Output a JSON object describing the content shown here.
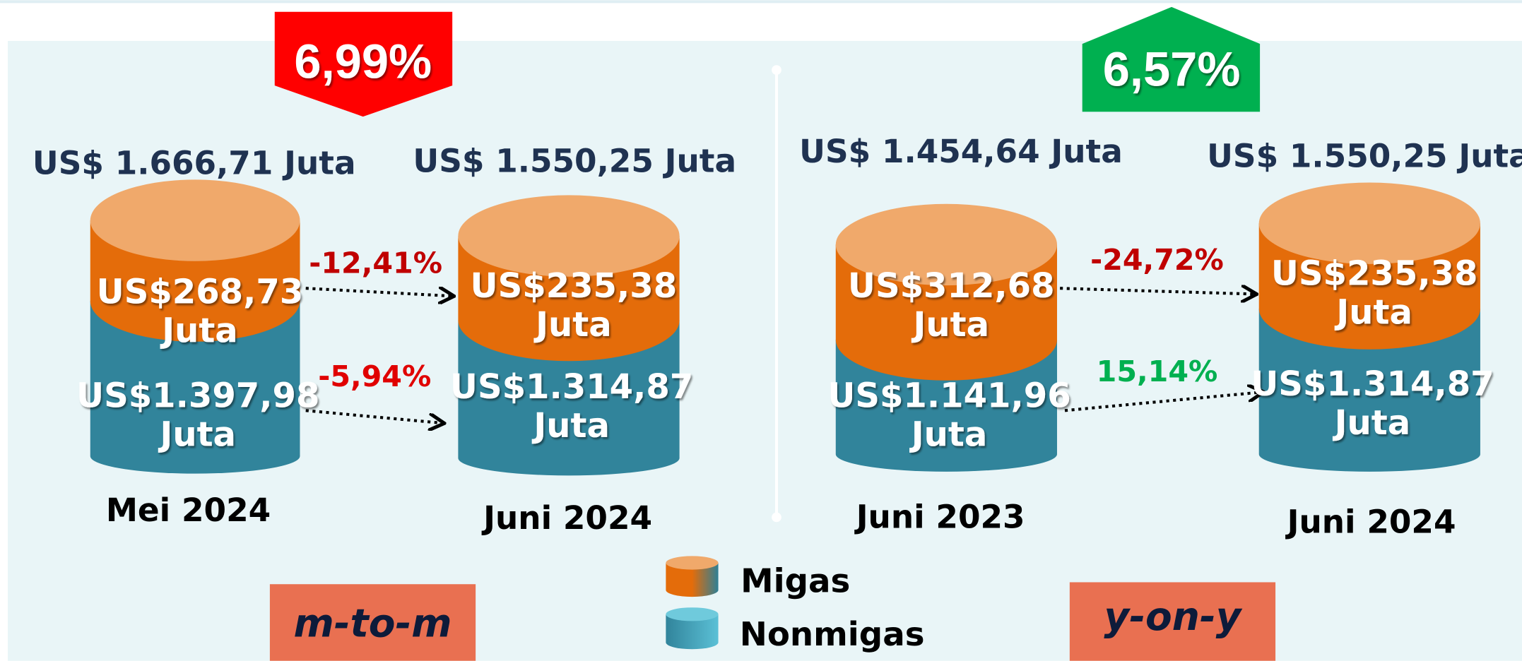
{
  "comparisons": [
    {
      "badge": "6,99%",
      "period": "m-to-m",
      "from": {
        "total": "US$ 1.666,71 Juta",
        "label": "Mei 2024",
        "migas": {
          "amount": "US$268,73",
          "unit": "Juta"
        },
        "nonmigas": {
          "amount": "US$1.397,98",
          "unit": "Juta"
        }
      },
      "to": {
        "total": "US$ 1.550,25 Juta",
        "label": "Juni 2024",
        "migas": {
          "amount": "US$235,38",
          "unit": "Juta"
        },
        "nonmigas": {
          "amount": "US$1.314,87",
          "unit": "Juta"
        }
      },
      "migas_change": "-12,41%",
      "nonmigas_change": "-5,94%"
    },
    {
      "badge": "6,57%",
      "period": "y-on-y",
      "from": {
        "total": "US$ 1.454,64 Juta",
        "label": "Juni 2023",
        "migas": {
          "amount": "US$312,68",
          "unit": "Juta"
        },
        "nonmigas": {
          "amount": "US$1.141,96",
          "unit": "Juta"
        }
      },
      "to": {
        "total": "US$ 1.550,25 Juta",
        "label": "Juni 2024",
        "migas": {
          "amount": "US$235,38",
          "unit": "Juta"
        },
        "nonmigas": {
          "amount": "US$1.314,87",
          "unit": "Juta"
        }
      },
      "migas_change": "-24,72%",
      "nonmigas_change": "15,14%"
    }
  ],
  "legend": [
    "Migas",
    "Nonmigas"
  ]
}
